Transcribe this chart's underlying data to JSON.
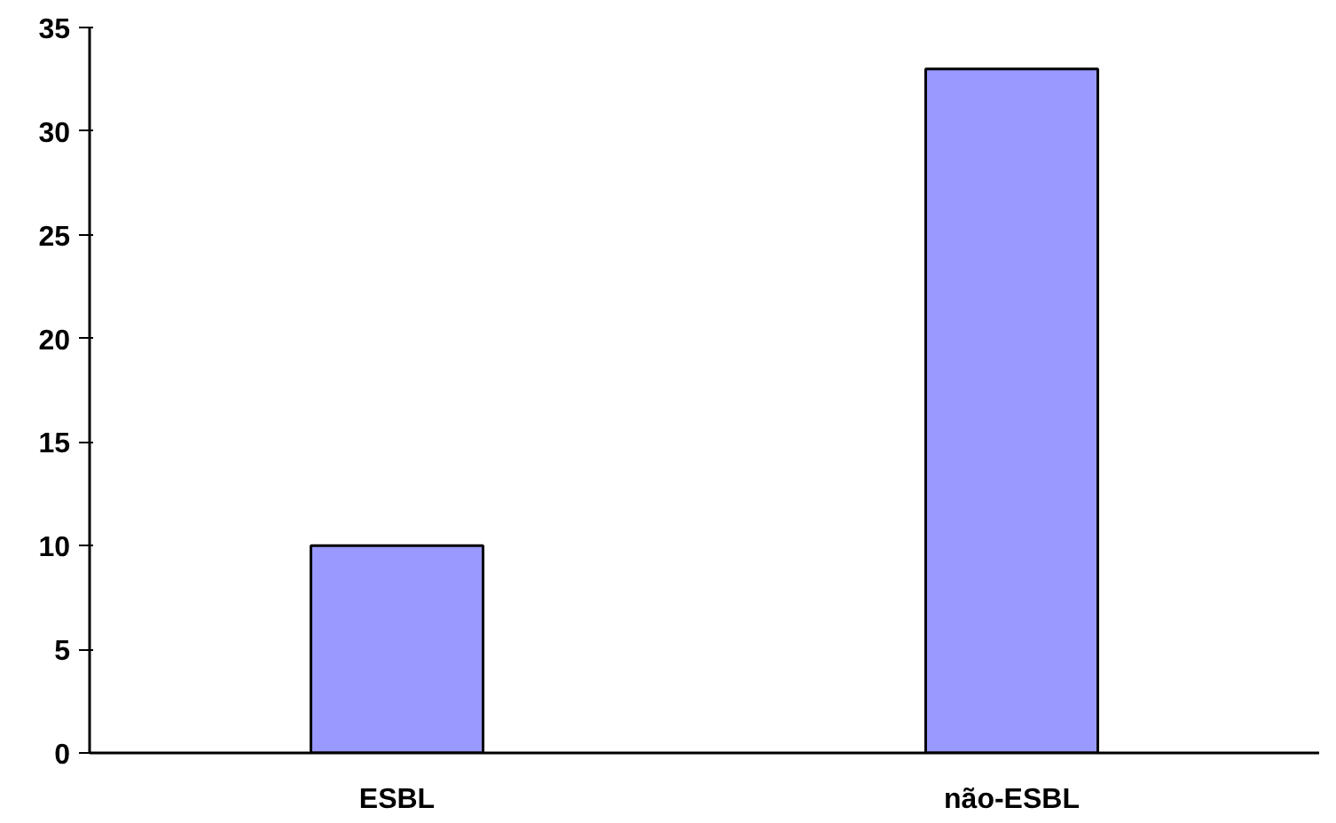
{
  "chart_data": {
    "type": "bar",
    "categories": [
      "ESBL",
      "não-ESBL"
    ],
    "series": [
      {
        "color": "#9999ff",
        "values": [
          10,
          33
        ]
      }
    ],
    "ylim": [
      0,
      35
    ],
    "yticks": [
      0,
      5,
      10,
      15,
      20,
      25,
      30,
      35
    ],
    "grid": false
  }
}
